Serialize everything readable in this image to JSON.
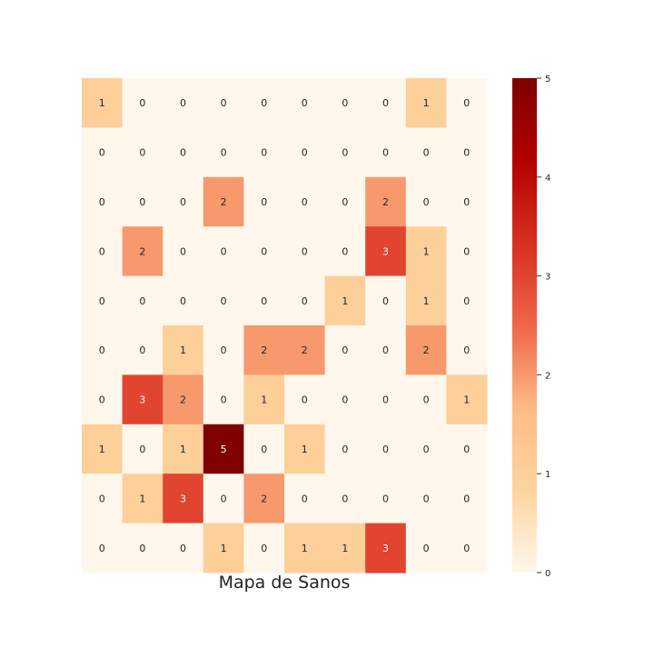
{
  "chart_data": {
    "type": "heatmap",
    "title": "Mapa de Sanos",
    "xlabel": "",
    "ylabel": "",
    "rows": 10,
    "cols": 10,
    "values": [
      [
        1,
        0,
        0,
        0,
        0,
        0,
        0,
        0,
        1,
        0
      ],
      [
        0,
        0,
        0,
        0,
        0,
        0,
        0,
        0,
        0,
        0
      ],
      [
        0,
        0,
        0,
        2,
        0,
        0,
        0,
        2,
        0,
        0
      ],
      [
        0,
        2,
        0,
        0,
        0,
        0,
        0,
        3,
        1,
        0
      ],
      [
        0,
        0,
        0,
        0,
        0,
        0,
        1,
        0,
        1,
        0
      ],
      [
        0,
        0,
        1,
        0,
        2,
        2,
        0,
        0,
        2,
        0
      ],
      [
        0,
        3,
        2,
        0,
        1,
        0,
        0,
        0,
        0,
        1
      ],
      [
        1,
        0,
        1,
        5,
        0,
        1,
        0,
        0,
        0,
        0
      ],
      [
        0,
        1,
        3,
        0,
        2,
        0,
        0,
        0,
        0,
        0
      ],
      [
        0,
        0,
        0,
        1,
        0,
        1,
        1,
        3,
        0,
        0
      ]
    ],
    "annotations": true,
    "colormap": {
      "name": "OrRd",
      "min": 0,
      "max": 5,
      "stops": [
        "#fff7ec",
        "#fdd49e",
        "#fdbb84",
        "#ef6548",
        "#d7301f",
        "#b30000",
        "#7f0000"
      ]
    },
    "colorbar": {
      "ticks": [
        0,
        1,
        2,
        3,
        4,
        5
      ],
      "tick_labels": [
        "0",
        "1",
        "2",
        "3",
        "4",
        "5"
      ]
    },
    "grid": false,
    "axes_ticks_visible": false
  }
}
